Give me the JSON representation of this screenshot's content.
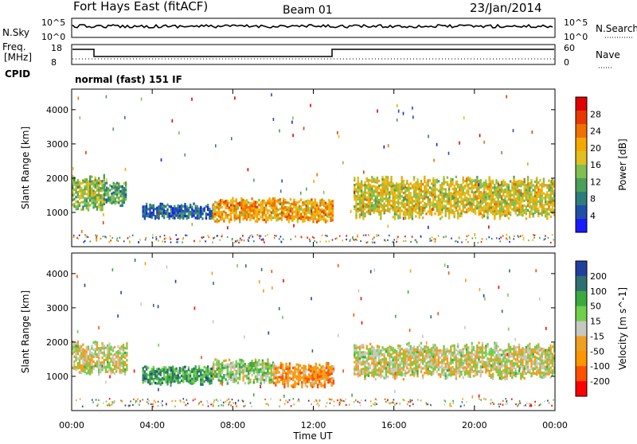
{
  "header": {
    "site": "Fort Hays East (fitACF)",
    "beam": "Beam 01",
    "date": "23/Jan/2014"
  },
  "panels": {
    "nsky": {
      "label": "N.Sky",
      "tick_top": "10^5",
      "tick_bottom": "10^0",
      "right_label": "N.Search",
      "right_tick_top": "10^5",
      "right_tick_bottom": "10^0"
    },
    "freq": {
      "label_line1": "Freq.",
      "label_line2": "[MHz]",
      "tick_top": "18",
      "tick_bottom": "8",
      "right_label": "Nave",
      "right_tick_top": "60",
      "right_tick_bottom": "0"
    },
    "cpid": {
      "label": "CPID",
      "text": "normal (fast) 151 IF"
    }
  },
  "x_axis": {
    "title": "Time UT",
    "ticks": [
      "00:00",
      "04:00",
      "08:00",
      "12:00",
      "16:00",
      "20:00",
      "00:00"
    ]
  },
  "colors": {
    "power": [
      "#1a1aff",
      "#1f4fa8",
      "#2e7d7d",
      "#4a9f5a",
      "#7fc050",
      "#e0c020",
      "#f5a800",
      "#f07000",
      "#e83800",
      "#e00000"
    ],
    "velocity": [
      "#ff0000",
      "#ff5000",
      "#ff9600",
      "#f0a020",
      "#c8c8c0",
      "#6fd04a",
      "#3aaa40",
      "#2e7070",
      "#2040a0"
    ]
  },
  "chart_data": [
    {
      "type": "heatmap",
      "name": "power",
      "ylabel": "Slant Range [km]",
      "yticks": [
        1000,
        2000,
        3000,
        4000
      ],
      "ylim": [
        0,
        4600
      ],
      "xlim_hours": [
        0,
        24
      ],
      "colorbar_label": "Power [dB]",
      "colorbar_ticks": [
        "4",
        "8",
        "12",
        "16",
        "20",
        "24",
        "28"
      ],
      "echo_regions": [
        {
          "t0": 0.0,
          "t1": 1.6,
          "r_center": 1600,
          "r_half": 450,
          "level": 0.45
        },
        {
          "t0": 1.6,
          "t1": 2.7,
          "r_center": 1550,
          "r_half": 300,
          "level": 0.35
        },
        {
          "t0": 3.5,
          "t1": 7.0,
          "r_center": 1050,
          "r_half": 200,
          "level": 0.2
        },
        {
          "t0": 7.0,
          "t1": 13.0,
          "r_center": 1100,
          "r_half": 280,
          "level": 0.65
        },
        {
          "t0": 14.0,
          "t1": 24.0,
          "r_center": 1450,
          "r_half": 500,
          "level": 0.55
        }
      ]
    },
    {
      "type": "heatmap",
      "name": "velocity",
      "ylabel": "Slant Range [km]",
      "yticks": [
        1000,
        2000,
        3000,
        4000
      ],
      "ylim": [
        0,
        4600
      ],
      "xlim_hours": [
        0,
        24
      ],
      "colorbar_label": "Velocity [m s^-1]",
      "colorbar_ticks": [
        "200",
        "100",
        "50",
        "15",
        "-15",
        "-50",
        "-100",
        "-200"
      ],
      "echo_regions": [
        {
          "t0": 0.0,
          "t1": 2.7,
          "r_center": 1550,
          "r_half": 400,
          "level": 0.5
        },
        {
          "t0": 3.5,
          "t1": 7.0,
          "r_center": 1050,
          "r_half": 220,
          "level": 0.72
        },
        {
          "t0": 7.0,
          "t1": 10.0,
          "r_center": 1150,
          "r_half": 300,
          "level": 0.58
        },
        {
          "t0": 10.0,
          "t1": 13.0,
          "r_center": 1050,
          "r_half": 300,
          "level": 0.3
        },
        {
          "t0": 14.0,
          "t1": 24.0,
          "r_center": 1450,
          "r_half": 450,
          "level": 0.5
        }
      ]
    }
  ]
}
